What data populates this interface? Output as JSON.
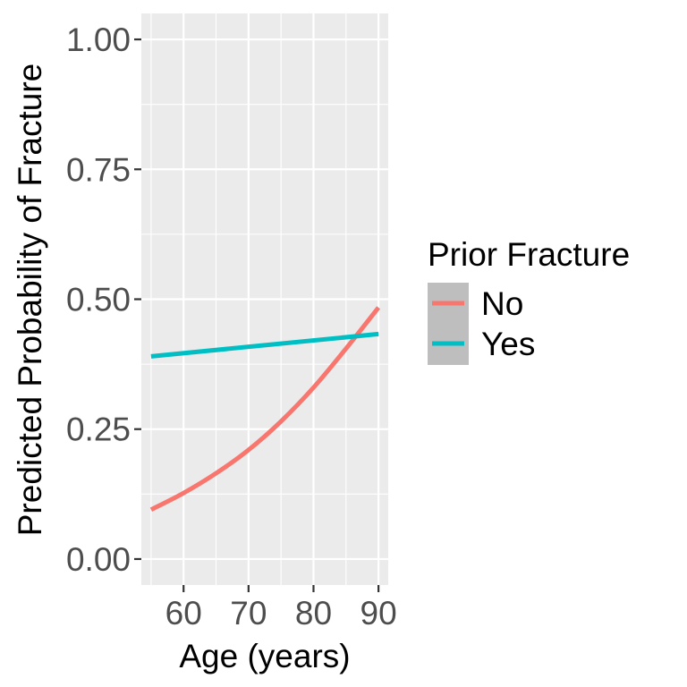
{
  "chart_data": {
    "type": "line",
    "xlabel": "Age (years)",
    "ylabel": "Predicted Probability of Fracture",
    "xlim": [
      53.5,
      91.5
    ],
    "ylim": [
      -0.05,
      1.05
    ],
    "x_ticks": [
      60,
      70,
      80,
      90
    ],
    "y_ticks": [
      0.0,
      0.25,
      0.5,
      0.75,
      1.0
    ],
    "x_tick_labels": [
      "60",
      "70",
      "80",
      "90"
    ],
    "y_tick_labels": [
      "0.00",
      "0.25",
      "0.50",
      "0.75",
      "1.00"
    ],
    "grid": true,
    "legend": {
      "title": "Prior Fracture",
      "position": "right"
    },
    "series": [
      {
        "name": "No",
        "color": "#F8766D",
        "x": [
          55,
          60,
          65,
          70,
          75,
          80,
          85,
          90
        ],
        "y": [
          0.095,
          0.127,
          0.165,
          0.21,
          0.265,
          0.33,
          0.405,
          0.484
        ]
      },
      {
        "name": "Yes",
        "color": "#00BFC4",
        "x": [
          55,
          90
        ],
        "y": [
          0.39,
          0.433
        ]
      }
    ]
  }
}
